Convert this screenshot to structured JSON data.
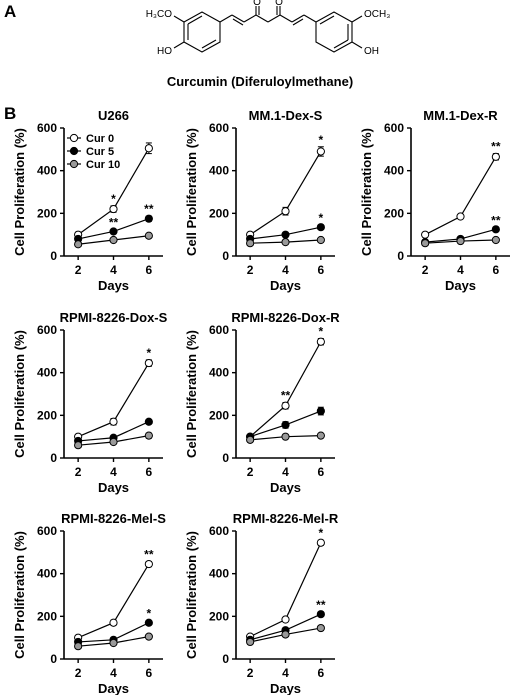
{
  "panels": {
    "a": "A",
    "b": "B"
  },
  "structure": {
    "left_methoxy": "H₃CO",
    "right_methoxy": "OCH₃",
    "left_hydroxy": "HO",
    "right_hydroxy": "OH",
    "keto_1": "O",
    "keto_2": "O"
  },
  "compound_name": "Curcumin (Diferuloylmethane)",
  "legend": [
    "Cur 0",
    "Cur 5",
    "Cur 10"
  ],
  "colors": {
    "cur0_fill": "#ffffff",
    "cur5_fill": "#000000",
    "cur10_fill": "#999999",
    "line": "#000000"
  },
  "chart_data": [
    {
      "type": "line",
      "title": "U266",
      "xlabel": "Days",
      "ylabel": "Cell Proliferation (%)",
      "x": [
        2,
        4,
        6
      ],
      "ylim": [
        0,
        600
      ],
      "yticks": [
        0,
        200,
        400,
        600
      ],
      "legend_position": "top-left",
      "series": [
        {
          "name": "Cur 0",
          "values": [
            100,
            220,
            505
          ],
          "errors": [
            12,
            15,
            25
          ],
          "annotations": [
            "",
            "*",
            ""
          ]
        },
        {
          "name": "Cur 5",
          "values": [
            80,
            115,
            175
          ],
          "errors": [
            8,
            10,
            12
          ],
          "annotations": [
            "",
            "**",
            "**"
          ]
        },
        {
          "name": "Cur 10",
          "values": [
            55,
            75,
            95
          ],
          "errors": [
            5,
            5,
            6
          ],
          "annotations": [
            "",
            "",
            ""
          ]
        }
      ]
    },
    {
      "type": "line",
      "title": "MM.1-Dex-S",
      "xlabel": "Days",
      "ylabel": "Cell Proliferation (%)",
      "x": [
        2,
        4,
        6
      ],
      "ylim": [
        0,
        600
      ],
      "yticks": [
        0,
        200,
        400,
        600
      ],
      "series": [
        {
          "name": "Cur 0",
          "values": [
            100,
            210,
            490
          ],
          "errors": [
            10,
            18,
            22
          ],
          "annotations": [
            "",
            "",
            "*"
          ]
        },
        {
          "name": "Cur 5",
          "values": [
            80,
            100,
            135
          ],
          "errors": [
            8,
            8,
            10
          ],
          "annotations": [
            "",
            "",
            "*"
          ]
        },
        {
          "name": "Cur 10",
          "values": [
            60,
            65,
            75
          ],
          "errors": [
            5,
            5,
            5
          ],
          "annotations": [
            "",
            "",
            ""
          ]
        }
      ]
    },
    {
      "type": "line",
      "title": "MM.1-Dex-R",
      "xlabel": "Days",
      "ylabel": "Cell Proliferation (%)",
      "x": [
        2,
        4,
        6
      ],
      "ylim": [
        0,
        600
      ],
      "yticks": [
        0,
        200,
        400,
        600
      ],
      "series": [
        {
          "name": "Cur 0",
          "values": [
            100,
            185,
            465
          ],
          "errors": [
            6,
            8,
            15
          ],
          "annotations": [
            "",
            "",
            "**"
          ]
        },
        {
          "name": "Cur 5",
          "values": [
            65,
            80,
            125
          ],
          "errors": [
            5,
            5,
            8
          ],
          "annotations": [
            "",
            "",
            "**"
          ]
        },
        {
          "name": "Cur 10",
          "values": [
            60,
            70,
            75
          ],
          "errors": [
            4,
            4,
            5
          ],
          "annotations": [
            "",
            "",
            ""
          ]
        }
      ]
    },
    {
      "type": "line",
      "title": "RPMI-8226-Dox-S",
      "xlabel": "Days",
      "ylabel": "Cell Proliferation (%)",
      "x": [
        2,
        4,
        6
      ],
      "ylim": [
        0,
        600
      ],
      "yticks": [
        0,
        200,
        400,
        600
      ],
      "series": [
        {
          "name": "Cur 0",
          "values": [
            100,
            170,
            445
          ],
          "errors": [
            8,
            15,
            15
          ],
          "annotations": [
            "",
            "",
            "*"
          ]
        },
        {
          "name": "Cur 5",
          "values": [
            80,
            95,
            170
          ],
          "errors": [
            6,
            8,
            10
          ],
          "annotations": [
            "",
            "",
            ""
          ]
        },
        {
          "name": "Cur 10",
          "values": [
            60,
            75,
            105
          ],
          "errors": [
            5,
            6,
            12
          ],
          "annotations": [
            "",
            "",
            ""
          ]
        }
      ]
    },
    {
      "type": "line",
      "title": "RPMI-8226-Dox-R",
      "xlabel": "Days",
      "ylabel": "Cell Proliferation (%)",
      "x": [
        2,
        4,
        6
      ],
      "ylim": [
        0,
        600
      ],
      "yticks": [
        0,
        200,
        400,
        600
      ],
      "series": [
        {
          "name": "Cur 0",
          "values": [
            100,
            245,
            545
          ],
          "errors": [
            10,
            15,
            15
          ],
          "annotations": [
            "",
            "**",
            "*"
          ]
        },
        {
          "name": "Cur 5",
          "values": [
            100,
            155,
            220
          ],
          "errors": [
            8,
            15,
            18
          ],
          "annotations": [
            "",
            "",
            ""
          ]
        },
        {
          "name": "Cur 10",
          "values": [
            85,
            100,
            105
          ],
          "errors": [
            6,
            8,
            8
          ],
          "annotations": [
            "",
            "",
            ""
          ]
        }
      ]
    },
    {
      "type": "line",
      "title": "RPMI-8226-Mel-S",
      "xlabel": "Days",
      "ylabel": "Cell Proliferation (%)",
      "x": [
        2,
        4,
        6
      ],
      "ylim": [
        0,
        600
      ],
      "yticks": [
        0,
        200,
        400,
        600
      ],
      "series": [
        {
          "name": "Cur 0",
          "values": [
            100,
            170,
            445
          ],
          "errors": [
            8,
            12,
            12
          ],
          "annotations": [
            "",
            "",
            "**"
          ]
        },
        {
          "name": "Cur 5",
          "values": [
            80,
            90,
            170
          ],
          "errors": [
            6,
            8,
            10
          ],
          "annotations": [
            "",
            "",
            "*"
          ]
        },
        {
          "name": "Cur 10",
          "values": [
            60,
            75,
            105
          ],
          "errors": [
            5,
            6,
            10
          ],
          "annotations": [
            "",
            "",
            ""
          ]
        }
      ]
    },
    {
      "type": "line",
      "title": "RPMI-8226-Mel-R",
      "xlabel": "Days",
      "ylabel": "Cell Proliferation (%)",
      "x": [
        2,
        4,
        6
      ],
      "ylim": [
        0,
        600
      ],
      "yticks": [
        0,
        200,
        400,
        600
      ],
      "series": [
        {
          "name": "Cur 0",
          "values": [
            105,
            185,
            545
          ],
          "errors": [
            8,
            8,
            12
          ],
          "annotations": [
            "",
            "",
            "*"
          ]
        },
        {
          "name": "Cur 5",
          "values": [
            90,
            135,
            210
          ],
          "errors": [
            6,
            8,
            10
          ],
          "annotations": [
            "",
            "",
            "**"
          ]
        },
        {
          "name": "Cur 10",
          "values": [
            80,
            115,
            145
          ],
          "errors": [
            5,
            8,
            10
          ],
          "annotations": [
            "",
            "",
            ""
          ]
        }
      ]
    }
  ]
}
